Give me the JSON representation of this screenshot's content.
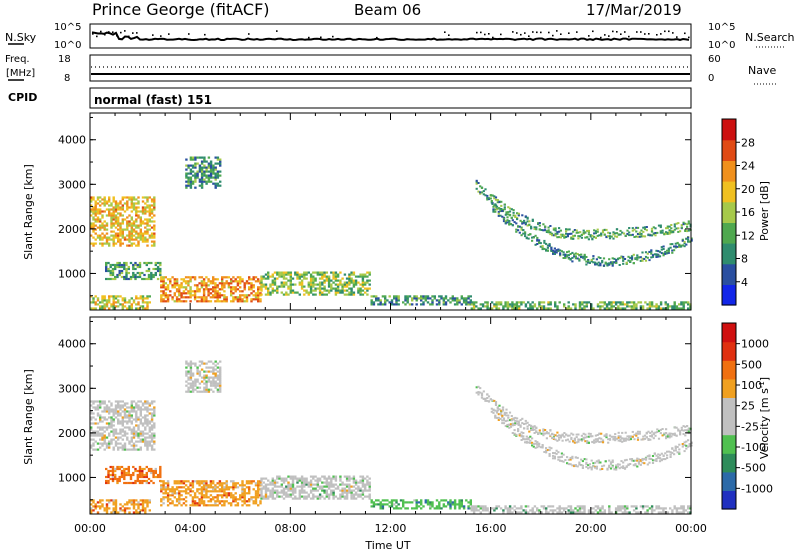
{
  "header": {
    "title_left": "Prince George (fitACF)",
    "title_center": "Beam 06",
    "title_right": "17/Mar/2019"
  },
  "status_panels": {
    "nsky_label": "N.Sky",
    "nsky_ticks": [
      "10^5",
      "10^0"
    ],
    "nsearch_label": "N.Search",
    "nsearch_ticks": [
      "10^5",
      "10^0"
    ],
    "freq_label_1": "Freq.",
    "freq_label_2": "[MHz]",
    "freq_ticks": [
      "18",
      "8"
    ],
    "nave_label": "Nave",
    "nave_ticks": [
      "60",
      "0"
    ],
    "cpid_label": "CPID",
    "cpid_value": "normal (fast) 151"
  },
  "chart_data": [
    {
      "type": "heatmap",
      "name": "power",
      "ylabel": "Slant Range [km]",
      "xlabel": "Time UT",
      "xlim": [
        0,
        24
      ],
      "ylim": [
        180,
        4600
      ],
      "ytick_labels": [
        "1000",
        "2000",
        "3000",
        "4000"
      ],
      "yticks": [
        1000,
        2000,
        3000,
        4000
      ],
      "xtick_labels": [
        "00:00",
        "04:00",
        "08:00",
        "12:00",
        "16:00",
        "20:00",
        "00:00"
      ],
      "xticks": [
        0,
        4,
        8,
        12,
        16,
        20,
        24
      ],
      "colorbar": {
        "label": "Power [dB]",
        "range": [
          0,
          32
        ],
        "tick_values": [
          4,
          8,
          12,
          16,
          20,
          24,
          28
        ],
        "tick_labels": [
          "4",
          "8",
          "12",
          "16",
          "20",
          "24",
          "28"
        ],
        "colors": [
          "#1226e8",
          "#2a4fa0",
          "#2f8c6e",
          "#4fa84f",
          "#a6c94a",
          "#f0c020",
          "#f0901c",
          "#e04a14",
          "#cc1010"
        ]
      },
      "regions": [
        {
          "t0": 0.0,
          "t1": 2.6,
          "r0": 1600,
          "r1": 2700,
          "level": 0.62
        },
        {
          "t0": 0.6,
          "t1": 2.8,
          "r0": 850,
          "r1": 1250,
          "level": 0.35
        },
        {
          "t0": 2.8,
          "t1": 6.8,
          "r0": 350,
          "r1": 900,
          "level": 0.7
        },
        {
          "t0": 6.8,
          "t1": 11.2,
          "r0": 500,
          "r1": 1000,
          "level": 0.45
        },
        {
          "t0": 11.2,
          "t1": 15.2,
          "r0": 280,
          "r1": 500,
          "level": 0.3
        },
        {
          "t0": 15.2,
          "t1": 24.0,
          "r0": 190,
          "r1": 350,
          "level": 0.4
        },
        {
          "t0": 0.0,
          "t1": 2.4,
          "r0": 190,
          "r1": 500,
          "level": 0.55
        },
        {
          "t0": 3.8,
          "t1": 5.2,
          "r0": 2900,
          "r1": 3600,
          "level": 0.3
        }
      ],
      "arcs": [
        {
          "t0": 15.4,
          "t1": 24.0,
          "tmin": 19.5,
          "rmin": 1850,
          "r_edge": 2950,
          "r_end": 2050,
          "level": 0.35
        },
        {
          "t0": 16.0,
          "t1": 24.0,
          "tmin": 20.5,
          "rmin": 1250,
          "r_edge": 2500,
          "r_end": 1750,
          "level": 0.3
        }
      ]
    },
    {
      "type": "heatmap",
      "name": "velocity",
      "ylabel": "Slant Range [km]",
      "xlabel": "Time UT",
      "xlim": [
        0,
        24
      ],
      "ylim": [
        180,
        4600
      ],
      "ytick_labels": [
        "1000",
        "2000",
        "3000",
        "4000"
      ],
      "yticks": [
        1000,
        2000,
        3000,
        4000
      ],
      "xtick_labels": [
        "00:00",
        "04:00",
        "08:00",
        "12:00",
        "16:00",
        "20:00",
        "00:00"
      ],
      "xticks": [
        0,
        4,
        8,
        12,
        16,
        20,
        24
      ],
      "colorbar": {
        "label": "Velocity [m s^-1]",
        "tick_labels": [
          "1000",
          "500",
          "100",
          "25",
          "-25",
          "-100",
          "-500",
          "-1000"
        ],
        "colors": [
          "#2030c0",
          "#2c6aa8",
          "#2e8c5a",
          "#50c050",
          "#c0c0c0",
          "#c0c0c0",
          "#f0a020",
          "#f07010",
          "#e03010",
          "#d01010"
        ]
      },
      "regions": [
        {
          "t0": 0.0,
          "t1": 2.6,
          "r0": 1600,
          "r1": 2700,
          "level": 0.5
        },
        {
          "t0": 0.6,
          "t1": 2.8,
          "r0": 850,
          "r1": 1250,
          "level": 0.75
        },
        {
          "t0": 2.8,
          "t1": 6.8,
          "r0": 350,
          "r1": 900,
          "level": 0.7
        },
        {
          "t0": 6.8,
          "t1": 11.2,
          "r0": 500,
          "r1": 1000,
          "level": 0.45
        },
        {
          "t0": 11.2,
          "t1": 15.2,
          "r0": 280,
          "r1": 500,
          "level": 0.3
        },
        {
          "t0": 15.2,
          "t1": 24.0,
          "r0": 190,
          "r1": 350,
          "level": 0.4
        },
        {
          "t0": 0.0,
          "t1": 2.4,
          "r0": 190,
          "r1": 500,
          "level": 0.7
        },
        {
          "t0": 3.8,
          "t1": 5.2,
          "r0": 2900,
          "r1": 3600,
          "level": 0.5
        }
      ],
      "arcs": [
        {
          "t0": 15.4,
          "t1": 24.0,
          "tmin": 19.5,
          "rmin": 1850,
          "r_edge": 2950,
          "r_end": 2050,
          "level": 0.5
        },
        {
          "t0": 16.0,
          "t1": 24.0,
          "tmin": 20.5,
          "rmin": 1250,
          "r_edge": 2500,
          "r_end": 1750,
          "level": 0.5
        }
      ]
    }
  ]
}
